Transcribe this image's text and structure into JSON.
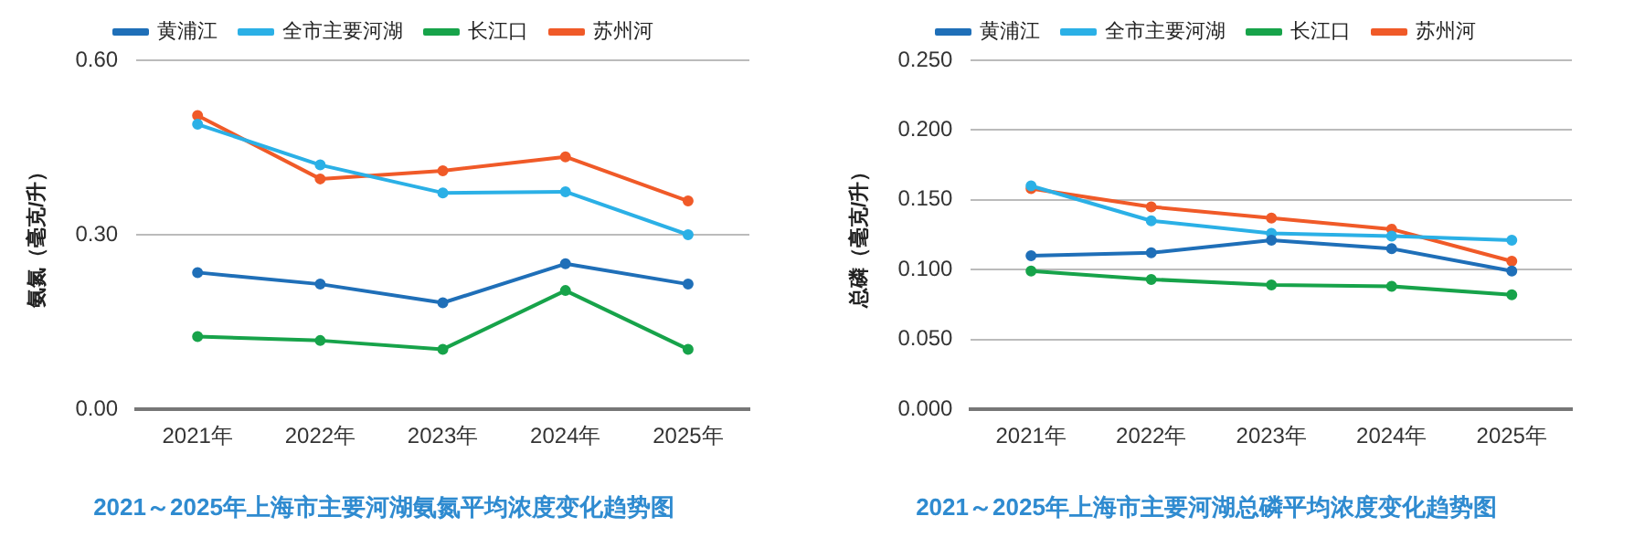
{
  "chart_data": [
    {
      "type": "line",
      "title": "2021～2025年上海市主要河湖氨氮平均浓度变化趋势图",
      "ylabel": "氨氮（毫克/升）",
      "categories": [
        "2021年",
        "2022年",
        "2023年",
        "2024年",
        "2025年"
      ],
      "ylim": [
        0,
        0.6
      ],
      "yticks": [
        {
          "value": 0,
          "label": "0.00"
        },
        {
          "value": 0.3,
          "label": "0.30"
        },
        {
          "value": 0.6,
          "label": "0.60"
        }
      ],
      "grid": "y",
      "legend": "top",
      "marker": "circle",
      "line_style": "solid",
      "series": [
        {
          "name": "黄浦江",
          "color": "#1f6fb8",
          "values": [
            0.235,
            0.215,
            0.183,
            0.25,
            0.215
          ]
        },
        {
          "name": "全市主要河湖",
          "color": "#2bb0e6",
          "values": [
            0.49,
            0.42,
            0.372,
            0.374,
            0.3
          ]
        },
        {
          "name": "长江口",
          "color": "#17a34a",
          "values": [
            0.125,
            0.118,
            0.103,
            0.204,
            0.103
          ]
        },
        {
          "name": "苏州河",
          "color": "#f05a28",
          "values": [
            0.505,
            0.396,
            0.41,
            0.434,
            0.358
          ]
        }
      ]
    },
    {
      "type": "line",
      "title": "2021～2025年上海市主要河湖总磷平均浓度变化趋势图",
      "ylabel": "总磷（毫克/升）",
      "categories": [
        "2021年",
        "2022年",
        "2023年",
        "2024年",
        "2025年"
      ],
      "ylim": [
        0,
        0.25
      ],
      "yticks": [
        {
          "value": 0,
          "label": "0.000"
        },
        {
          "value": 0.05,
          "label": "0.050"
        },
        {
          "value": 0.1,
          "label": "0.100"
        },
        {
          "value": 0.15,
          "label": "0.150"
        },
        {
          "value": 0.2,
          "label": "0.200"
        },
        {
          "value": 0.25,
          "label": "0.250"
        }
      ],
      "grid": "y",
      "legend": "top",
      "marker": "circle",
      "line_style": "solid",
      "series": [
        {
          "name": "黄浦江",
          "color": "#1f6fb8",
          "values": [
            0.11,
            0.112,
            0.121,
            0.115,
            0.099
          ]
        },
        {
          "name": "全市主要河湖",
          "color": "#2bb0e6",
          "values": [
            0.16,
            0.135,
            0.126,
            0.124,
            0.121
          ]
        },
        {
          "name": "长江口",
          "color": "#17a34a",
          "values": [
            0.099,
            0.093,
            0.089,
            0.088,
            0.082
          ]
        },
        {
          "name": "苏州河",
          "color": "#f05a28",
          "values": [
            0.158,
            0.145,
            0.137,
            0.129,
            0.106
          ]
        }
      ]
    }
  ]
}
